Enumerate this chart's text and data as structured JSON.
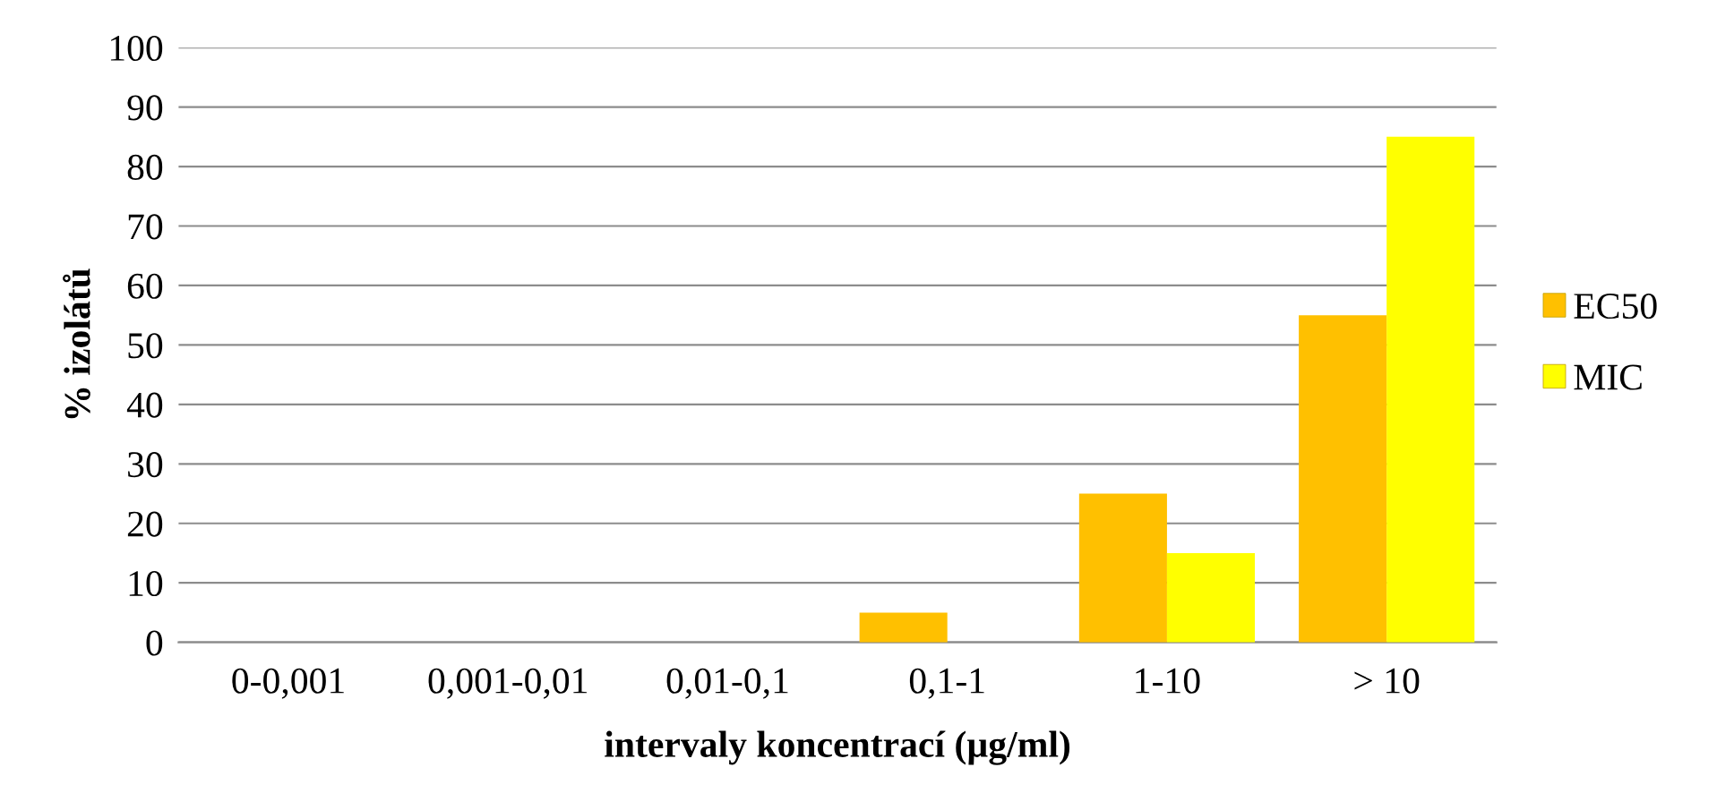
{
  "chart_data": {
    "type": "bar",
    "xlabel": "intervaly koncentrací (µg/ml)",
    "ylabel": "% izolátů",
    "categories": [
      "0-0,001",
      "0,001-0,01",
      "0,01-0,1",
      "0,1-1",
      "1-10",
      "> 10"
    ],
    "series": [
      {
        "name": "EC50",
        "color": "#ffc000",
        "values": [
          0,
          0,
          0,
          5,
          25,
          55
        ]
      },
      {
        "name": "MIC",
        "color": "#ffff00",
        "values": [
          0,
          0,
          0,
          0,
          15,
          85
        ]
      }
    ],
    "ylim": [
      0,
      100
    ],
    "yticks": [
      0,
      10,
      20,
      30,
      40,
      50,
      60,
      70,
      80,
      90,
      100
    ],
    "grid": "y",
    "legend": "right"
  }
}
